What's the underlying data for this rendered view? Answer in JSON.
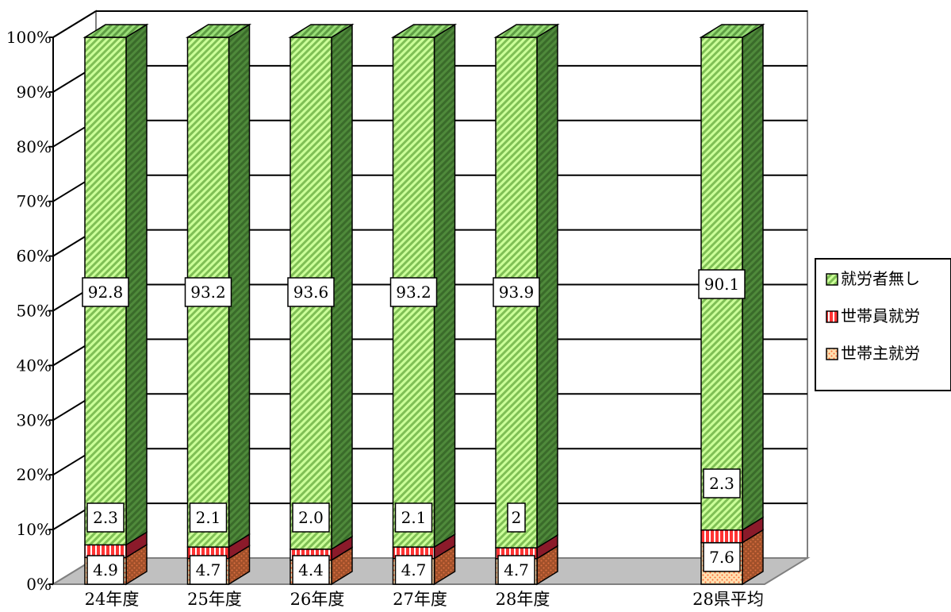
{
  "chart_data": {
    "type": "bar",
    "stacked": "percent",
    "three_d": true,
    "categories": [
      "24年度",
      "25年度",
      "26年度",
      "27年度",
      "28年度",
      "28県平均"
    ],
    "category_slots": [
      0,
      1,
      2,
      3,
      4,
      6
    ],
    "series": [
      {
        "name": "世帯主就労",
        "values": [
          4.9,
          4.7,
          4.4,
          4.7,
          4.7,
          7.6
        ],
        "labels": [
          "4.9",
          "4.7",
          "4.4",
          "4.7",
          "4.7",
          "7.6"
        ]
      },
      {
        "name": "世帯員就労",
        "values": [
          2.3,
          2.1,
          2.0,
          2.1,
          2.0,
          2.3
        ],
        "labels": [
          "2.3",
          "2.1",
          "2.0",
          "2.1",
          "2",
          "2.3"
        ]
      },
      {
        "name": "就労者無し",
        "values": [
          92.8,
          93.2,
          93.6,
          93.2,
          93.9,
          90.1
        ],
        "labels": [
          "92.8",
          "93.2",
          "93.6",
          "93.2",
          "93.9",
          "90.1"
        ]
      }
    ],
    "y_ticks": [
      "0%",
      "10%",
      "20%",
      "30%",
      "40%",
      "50%",
      "60%",
      "70%",
      "80%",
      "90%",
      "100%"
    ],
    "ylim": [
      0,
      100
    ],
    "grid": true,
    "legend_position": "right",
    "legend_order": [
      "就労者無し",
      "世帯員就労",
      "世帯主就労"
    ],
    "colors": {
      "fill_nashi_base": "#ccff99",
      "fill_nashi_stripe": "#7fbf55",
      "fill_nashi_side_base": "#4f8a3b",
      "fill_nashi_side_stripe": "#3a6b2a",
      "fill_nashi_top_base": "#99dd77",
      "fill_nashi_top_stripe": "#5e9e44",
      "fill_member_base": "#ff3333",
      "fill_member_stripe": "#ffffff",
      "fill_member_side": "#8b1a2a",
      "fill_head_base": "#ffe0b0",
      "fill_head_dot": "#ff6633",
      "fill_head_side_base": "#a0502a",
      "fill_head_side_dot": "#e07040",
      "floor": "#c0c0c0",
      "grid": "#000000"
    }
  }
}
